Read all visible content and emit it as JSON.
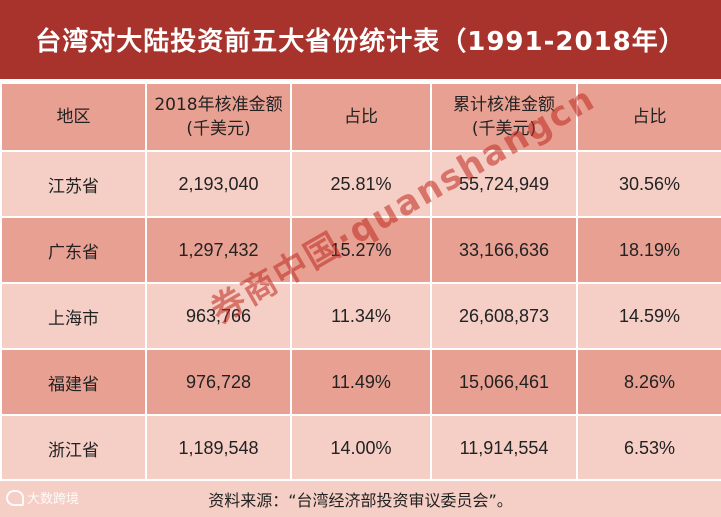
{
  "title": "台湾对大陆投资前五大省份统计表（1991-2018年）",
  "headers": {
    "region": "地区",
    "amount_2018_line1": "2018年核准金额",
    "amount_2018_line2": "(千美元)",
    "share_2018": "占比",
    "cumulative_line1": "累计核准金额",
    "cumulative_line2": "(千美元)",
    "share_cumulative": "占比"
  },
  "rows": [
    {
      "region": "江苏省",
      "amount_2018": "2,193,040",
      "share_2018": "25.81%",
      "cumulative": "55,724,949",
      "share_cumulative": "30.56%"
    },
    {
      "region": "广东省",
      "amount_2018": "1,297,432",
      "share_2018": "15.27%",
      "cumulative": "33,166,636",
      "share_cumulative": "18.19%"
    },
    {
      "region": "上海市",
      "amount_2018": "963,766",
      "share_2018": "11.34%",
      "cumulative": "26,608,873",
      "share_cumulative": "14.59%"
    },
    {
      "region": "福建省",
      "amount_2018": "976,728",
      "share_2018": "11.49%",
      "cumulative": "15,066,461",
      "share_cumulative": "8.26%"
    },
    {
      "region": "浙江省",
      "amount_2018": "1,189,548",
      "share_2018": "14.00%",
      "cumulative": "11,914,554",
      "share_cumulative": "6.53%"
    }
  ],
  "source": "资料来源：“台湾经济部投资审议委员会”。",
  "watermark": "券商中国·quanshangcn",
  "logo_text": "大数跨境",
  "colors": {
    "title_bg": "#a8322c",
    "row_dark": "#e8a093",
    "row_light": "#f5cfc6"
  }
}
